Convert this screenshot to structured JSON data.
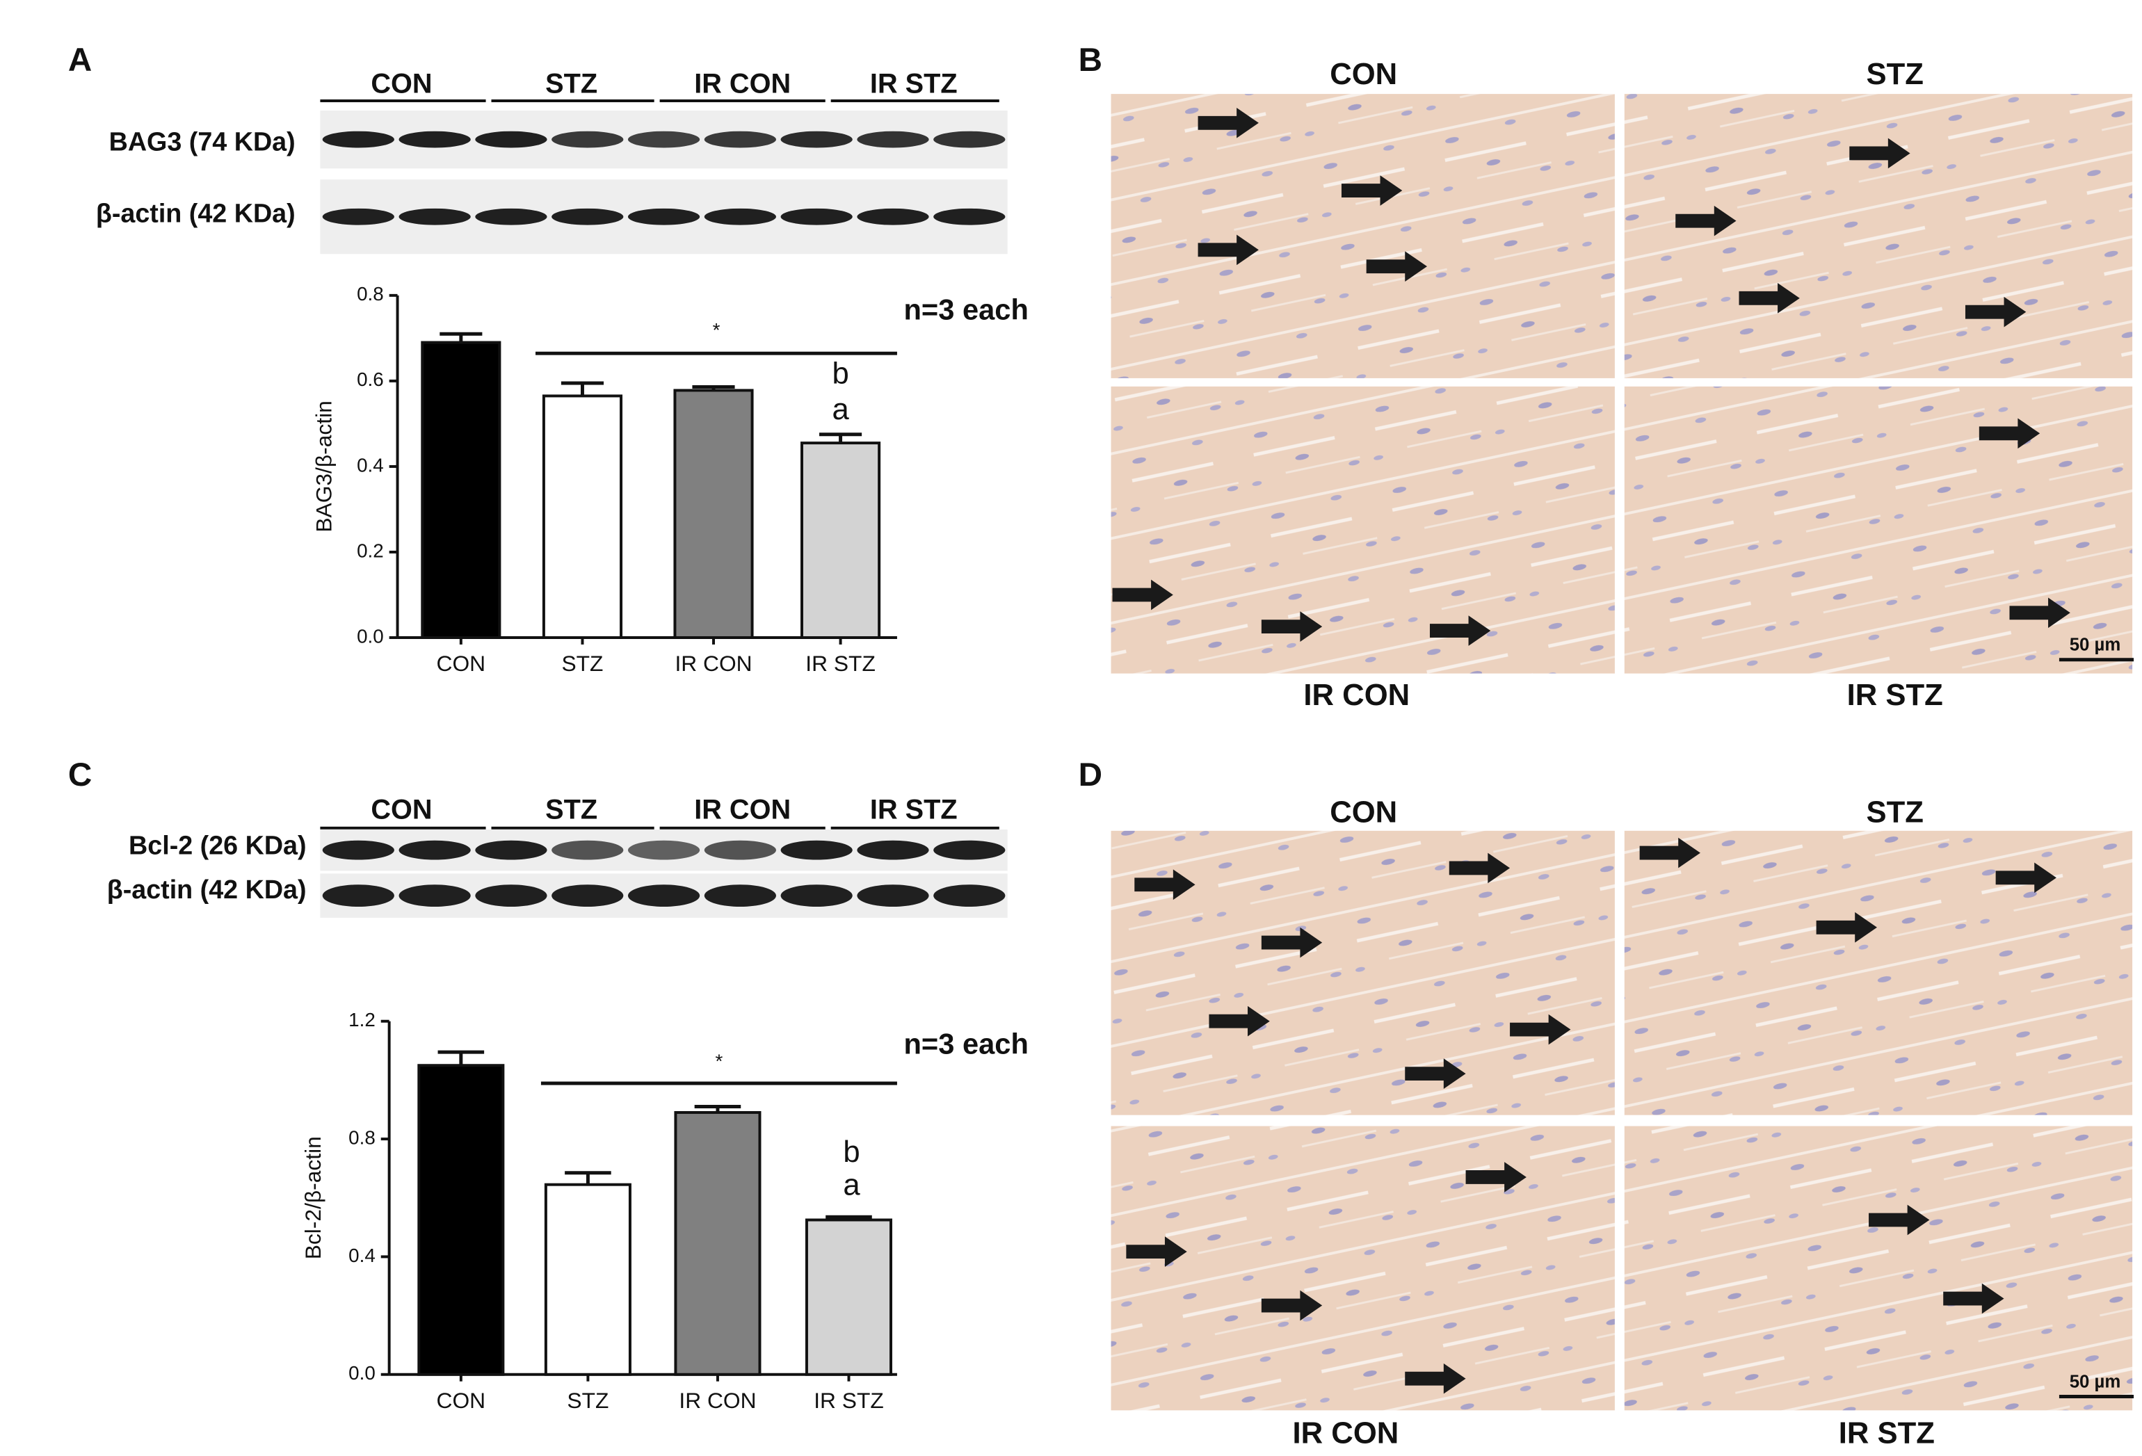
{
  "panel_labels": [
    "A",
    "B",
    "C",
    "D"
  ],
  "blots": [
    {
      "groups": [
        "CON",
        "STZ",
        "IR CON",
        "IR STZ"
      ],
      "rows": [
        "BAG3 (74 KDa)",
        "β-actin (42 KDa)"
      ]
    },
    {
      "groups": [
        "CON",
        "STZ",
        "IR CON",
        "IR STZ"
      ],
      "rows": [
        "Bcl-2 (26 KDa)",
        "β-actin (42 KDa)"
      ]
    }
  ],
  "histology": [
    {
      "groups": [
        "CON",
        "STZ",
        "IR CON",
        "IR STZ"
      ],
      "scale_bar": "50 µm"
    },
    {
      "groups": [
        "CON",
        "STZ",
        "IR CON",
        "IR STZ"
      ],
      "scale_bar": "50 µm"
    }
  ],
  "chart_data": [
    {
      "type": "bar",
      "y_label": "BAG3/β-actin",
      "categories": [
        "CON",
        "STZ",
        "IR CON",
        "IR STZ"
      ],
      "values": [
        0.69,
        0.565,
        0.578,
        0.455
      ],
      "errors": [
        0.02,
        0.03,
        0.008,
        0.02
      ],
      "colors": [
        "#000000",
        "#ffffff",
        "#808080",
        "#d3d3d3"
      ],
      "ylim": [
        0,
        0.8
      ],
      "yticks": [
        {
          "value": 0,
          "label": "0.0"
        },
        0.2,
        0.4,
        0.6,
        0.8
      ],
      "significance": "*",
      "letters": [
        "b",
        "a"
      ],
      "note": "n=3 each"
    },
    {
      "type": "bar",
      "y_label": "Bcl-2/β-actin",
      "categories": [
        "CON",
        "STZ",
        "IR CON",
        "IR STZ"
      ],
      "values": [
        1.05,
        0.645,
        0.89,
        0.525
      ],
      "errors": [
        0.045,
        0.04,
        0.02,
        0.01
      ],
      "colors": [
        "#000000",
        "#ffffff",
        "#808080",
        "#d3d3d3"
      ],
      "ylim": [
        0,
        1.2
      ],
      "yticks": [
        {
          "value": 0,
          "label": "0.0"
        },
        0.4,
        0.8,
        1.2
      ],
      "significance": "*",
      "letters": [
        "b",
        "a"
      ],
      "note": "n=3 each"
    }
  ]
}
